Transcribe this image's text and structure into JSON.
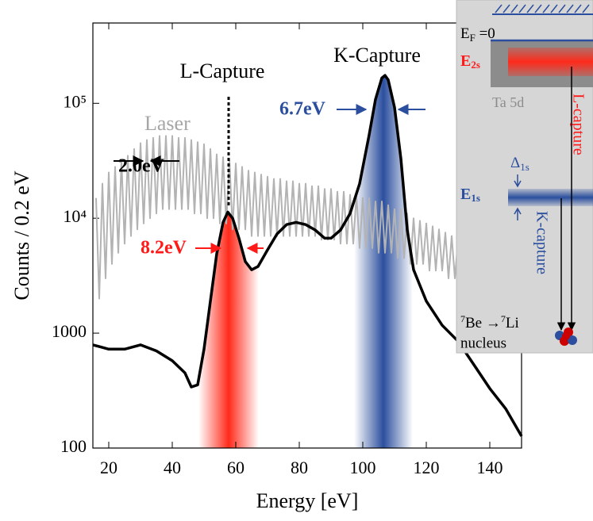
{
  "chart_data": {
    "type": "line",
    "xlabel": "Energy [eV]",
    "ylabel": "Counts / 0.2 eV",
    "xlim": [
      15,
      150
    ],
    "ylim": [
      100,
      500000
    ],
    "log_y": true,
    "xticks": [
      20,
      40,
      60,
      80,
      100,
      120,
      140
    ],
    "yticks": [
      100,
      1000,
      {
        "value": 10000,
        "label": "10⁴"
      },
      {
        "value": 100000,
        "label": "10⁵"
      }
    ],
    "annotations": [
      "L-Capture",
      "K-Capture",
      "2.0eV",
      "8.2eV",
      "6.7eV"
    ],
    "series": [
      {
        "color": "#000000",
        "x": [
          15,
          20,
          25,
          30,
          35,
          40,
          44,
          46,
          48,
          50,
          52,
          54,
          56,
          57.5,
          59,
          61,
          63,
          65,
          67,
          70,
          73,
          76,
          79,
          82,
          85,
          88,
          90,
          93,
          96,
          99,
          102,
          104,
          106,
          107,
          108,
          110,
          112,
          114,
          116,
          118,
          120,
          125,
          130,
          135,
          140,
          145,
          150
        ],
        "values": [
          790,
          725,
          725,
          790,
          700,
          575,
          450,
          340,
          355,
          725,
          1890,
          4900,
          9200,
          11300,
          10000,
          6700,
          4200,
          3560,
          3800,
          5300,
          7300,
          8800,
          9200,
          8800,
          7900,
          6700,
          6700,
          7900,
          11000,
          20000,
          53000,
          108000,
          166000,
          175000,
          160000,
          92000,
          33000,
          7900,
          3560,
          2600,
          1900,
          1170,
          850,
          530,
          330,
          220,
          127
        ]
      },
      {
        "name": "Laser",
        "color": "#b3b3b3",
        "x": [
          16,
          17,
          18,
          19,
          20,
          21,
          22,
          23,
          24,
          25,
          26,
          27,
          28,
          29,
          30,
          31,
          32,
          33,
          34,
          35,
          36,
          37,
          38,
          39,
          40,
          41,
          42,
          43,
          44,
          45,
          46,
          47,
          48,
          49,
          50,
          51,
          52,
          53,
          54,
          55,
          56,
          57,
          58,
          59,
          60,
          61,
          62,
          63,
          64,
          65,
          66,
          67,
          68,
          69,
          70,
          71,
          72,
          73,
          74,
          75,
          76,
          77,
          78,
          79,
          80,
          81,
          82,
          83,
          84,
          85,
          86,
          87,
          88,
          89,
          90,
          91,
          92,
          93,
          94,
          95,
          96,
          97,
          98,
          99,
          100,
          101,
          102,
          103,
          104,
          105,
          106,
          107,
          108,
          109,
          110,
          111,
          112,
          113,
          114,
          115,
          116,
          117,
          118,
          119,
          120,
          121,
          122,
          123,
          124,
          125,
          126,
          127,
          128,
          129,
          130,
          131,
          132,
          133,
          134,
          135,
          136,
          137,
          138,
          139,
          140,
          141,
          142,
          143,
          144,
          145,
          146
        ],
        "values": [
          15000,
          2000,
          20000,
          3000,
          25000,
          4000,
          28000,
          5000,
          32000,
          6000,
          35000,
          7000,
          40000,
          8000,
          45000,
          9000,
          48000,
          10000,
          50000,
          11000,
          52000,
          12000,
          52000,
          12000,
          52000,
          12000,
          50000,
          12000,
          50000,
          12000,
          48000,
          11000,
          46000,
          11000,
          44000,
          10000,
          40000,
          10000,
          36000,
          9000,
          34000,
          9000,
          32000,
          8000,
          30000,
          8000,
          28000,
          8000,
          26000,
          7000,
          25000,
          7000,
          24000,
          7000,
          23000,
          7000,
          22000,
          7000,
          22000,
          7000,
          21000,
          7000,
          21000,
          7000,
          20000,
          7000,
          20000,
          7000,
          19000,
          7000,
          19000,
          6500,
          18000,
          6500,
          18000,
          6500,
          17000,
          6000,
          17000,
          6000,
          16000,
          6000,
          16000,
          5500,
          15000,
          5500,
          15000,
          5500,
          14000,
          5000,
          14000,
          5000,
          13000,
          5000,
          12000,
          4500,
          12000,
          4500,
          11000,
          4000,
          10000,
          4000,
          9500,
          4000,
          9000,
          3500,
          8500,
          3500,
          8000,
          3500,
          7500,
          3000,
          7000,
          3000,
          6500,
          3000,
          6000,
          3000,
          5500,
          2800,
          5000,
          2800,
          5000,
          2800,
          4500,
          2700,
          4500,
          2700,
          4000,
          2700,
          4000
        ]
      }
    ]
  },
  "inset": {
    "fermi": [
      "E",
      "F",
      " =0"
    ],
    "e2s": [
      "E",
      "2s"
    ],
    "ta": "Ta 5d",
    "l_capture": "L-capture",
    "delta": [
      "Δ",
      "1s"
    ],
    "e1s": [
      "E",
      "1s"
    ],
    "k_capture": "K-capture",
    "decay": [
      "7",
      "Be →",
      "7",
      "Li"
    ],
    "nucleus": "nucleus"
  }
}
